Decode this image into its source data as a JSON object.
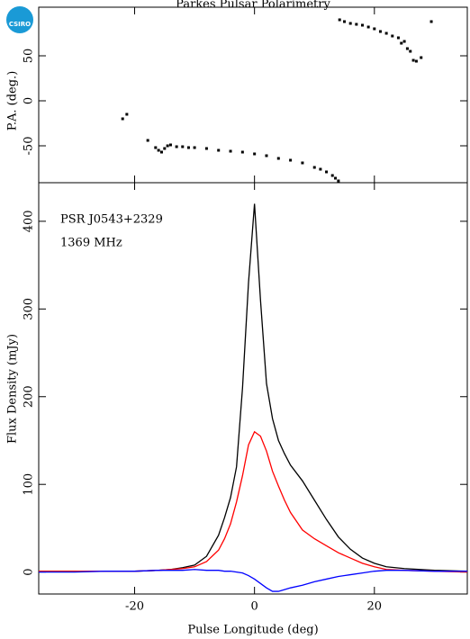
{
  "logo": "CSIRO",
  "chart_data": [
    {
      "type": "scatter",
      "title": "Parkes Pulsar Polarimetry",
      "ylabel": "P.A. (deg.)",
      "color": "#000000",
      "x": [
        -22,
        -21.3,
        -17.8,
        -16.5,
        -16,
        -15.5,
        -15,
        -14.5,
        -14,
        -13,
        -12,
        -11,
        -10,
        -8,
        -6,
        -4,
        -2,
        0,
        2,
        4,
        6,
        8,
        10,
        11,
        12,
        13,
        13.5,
        14,
        14.2,
        15,
        16,
        17,
        18,
        19,
        20,
        21,
        22,
        23,
        24,
        24.5,
        25,
        25.5,
        26,
        26.5,
        27,
        27.8,
        29.5
      ],
      "values": [
        -20,
        -15,
        -44,
        -52,
        -55,
        -57,
        -53,
        -50,
        -49,
        -51,
        -51,
        -52,
        -52,
        -53,
        -55,
        -56,
        -57,
        -59,
        -61,
        -64,
        -66,
        -69,
        -74,
        -76,
        -79,
        -83,
        -86,
        -89,
        90,
        88,
        86,
        85,
        84,
        82,
        80,
        77,
        75,
        72,
        70,
        64,
        66,
        58,
        55,
        45,
        44,
        48,
        88
      ],
      "xlim": [
        -36,
        35.5
      ],
      "xticks": [
        -20,
        0,
        20
      ],
      "ylim": [
        -91,
        104
      ],
      "yticks": [
        -50,
        0,
        50
      ]
    },
    {
      "type": "line",
      "xlabel": "Pulse Longitude (deg)",
      "ylabel": "Flux Density (mJy)",
      "annotations": [
        "PSR J0543+2329",
        "1369 MHz"
      ],
      "x": [
        -36,
        -30,
        -25,
        -20,
        -16,
        -14,
        -12,
        -10,
        -8,
        -6,
        -5,
        -4,
        -3,
        -2,
        -1,
        0,
        1,
        2,
        3,
        4,
        5,
        6,
        8,
        10,
        12,
        14,
        16,
        18,
        20,
        22,
        25,
        30,
        35.5
      ],
      "series": [
        {
          "color": "#000000",
          "values": [
            1,
            1,
            1,
            1,
            2,
            3,
            5,
            8,
            18,
            42,
            62,
            85,
            120,
            210,
            330,
            420,
            310,
            215,
            175,
            150,
            135,
            122,
            104,
            82,
            60,
            40,
            26,
            16,
            10,
            6,
            4,
            2,
            1
          ]
        },
        {
          "color": "#ff0000",
          "values": [
            1,
            1,
            1,
            1,
            2,
            3,
            4,
            6,
            12,
            25,
            38,
            55,
            80,
            110,
            145,
            160,
            155,
            138,
            115,
            98,
            82,
            68,
            48,
            38,
            30,
            22,
            16,
            10,
            6,
            3,
            2,
            1,
            0
          ]
        },
        {
          "color": "#0000ff",
          "values": [
            0,
            0,
            1,
            1,
            2,
            2,
            2,
            3,
            2,
            2,
            1,
            1,
            0,
            -1,
            -4,
            -8,
            -13,
            -18,
            -22,
            -22,
            -20,
            -18,
            -15,
            -11,
            -8,
            -5,
            -3,
            -1,
            1,
            2,
            2,
            1,
            1
          ]
        }
      ],
      "xlim": [
        -36,
        35.5
      ],
      "xticks": [
        -20,
        0,
        20
      ],
      "ylim": [
        -25,
        444
      ],
      "yticks": [
        0,
        100,
        200,
        300,
        400
      ]
    }
  ]
}
